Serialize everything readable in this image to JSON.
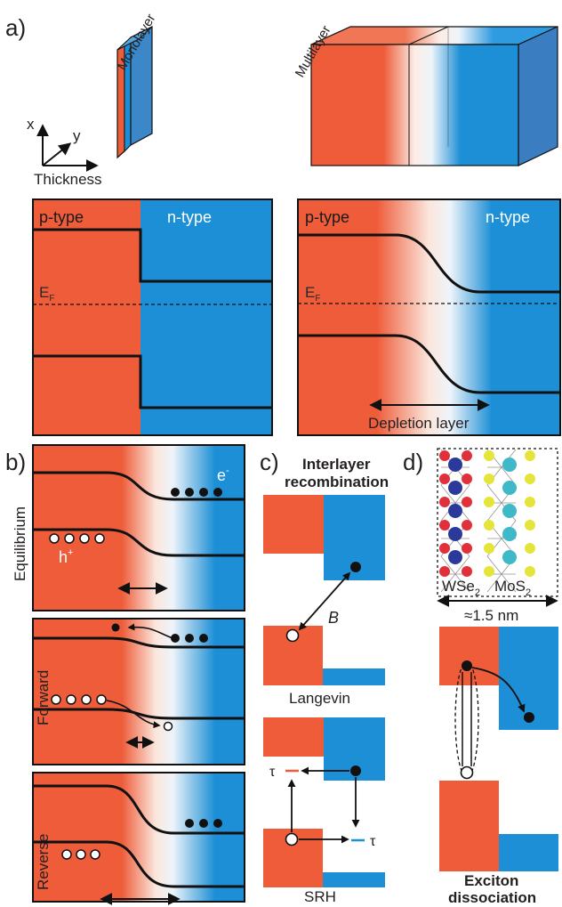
{
  "colors": {
    "p_type": "#EE5C3A",
    "n_type": "#1D8FD6",
    "ptype_text": "#1a1a1a",
    "ntype_text": "#ffffff",
    "line": "#111111",
    "ef_label": "#2a2a2a"
  },
  "panel_a": {
    "letter": "a)",
    "mono_label": "Monolayer",
    "multi_label": "Multilayer",
    "axis_x": "x",
    "axis_y": "y",
    "thickness": "Thickness",
    "p_type": "p-type",
    "n_type": "n-type",
    "ef": "E",
    "ef_sub": "F",
    "depletion": "Depletion layer"
  },
  "panel_b": {
    "letter": "b)",
    "equilibrium": "Equilibrium",
    "forward": "Forward",
    "reverse": "Reverse",
    "electron": "e",
    "electron_sup": "-",
    "hole": "h",
    "hole_sup": "+"
  },
  "panel_c": {
    "letter": "c)",
    "title_1": "Interlayer",
    "title_2": "recombination",
    "b_label": "B",
    "langevin": "Langevin",
    "tau_1": "τ",
    "tau_2": "τ",
    "srh": "SRH"
  },
  "panel_d": {
    "letter": "d)",
    "wse2": "WSe",
    "wse2_sub": "2",
    "mos2": "MoS",
    "mos2_sub": "2",
    "thickness": "≈1.5 nm",
    "title_1": "Exciton",
    "title_2": "dissociation"
  }
}
